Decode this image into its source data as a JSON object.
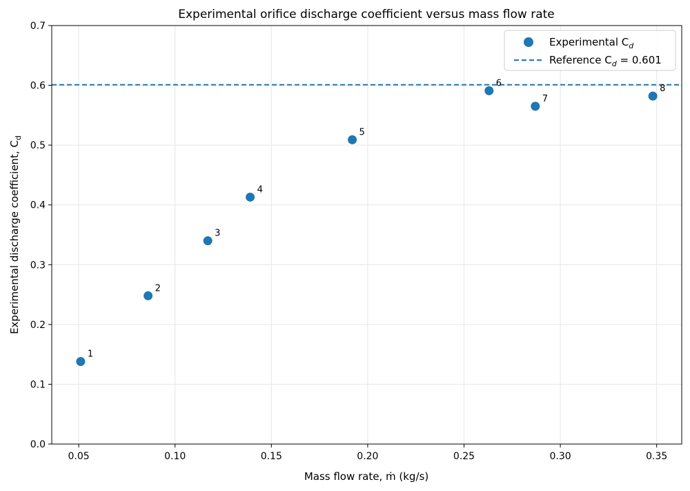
{
  "chart_data": {
    "type": "scatter",
    "title": "Experimental orifice discharge coefficient versus mass flow rate",
    "xlabel": "Mass flow rate, ṁ (kg/s)",
    "ylabel": "Experimental discharge coefficient, C",
    "ylabel_sub": "d",
    "xlim": [
      0.036,
      0.363
    ],
    "ylim": [
      0.0,
      0.7
    ],
    "x_ticks": [
      "0.05",
      "0.10",
      "0.15",
      "0.20",
      "0.25",
      "0.30",
      "0.35"
    ],
    "x_tick_values": [
      0.05,
      0.1,
      0.15,
      0.2,
      0.25,
      0.3,
      0.35
    ],
    "y_ticks": [
      "0.0",
      "0.1",
      "0.2",
      "0.3",
      "0.4",
      "0.5",
      "0.6",
      "0.7"
    ],
    "y_tick_values": [
      0.0,
      0.1,
      0.2,
      0.3,
      0.4,
      0.5,
      0.6,
      0.7
    ],
    "grid": true,
    "legend_position": "top-right",
    "series": [
      {
        "name": "Experimental C",
        "name_sub": "d",
        "color": "#1f77b4",
        "points": [
          {
            "label": "1",
            "x": 0.051,
            "y": 0.138
          },
          {
            "label": "2",
            "x": 0.086,
            "y": 0.248
          },
          {
            "label": "3",
            "x": 0.117,
            "y": 0.34
          },
          {
            "label": "4",
            "x": 0.139,
            "y": 0.413
          },
          {
            "label": "5",
            "x": 0.192,
            "y": 0.509
          },
          {
            "label": "6",
            "x": 0.263,
            "y": 0.591
          },
          {
            "label": "7",
            "x": 0.287,
            "y": 0.565
          },
          {
            "label": "8",
            "x": 0.348,
            "y": 0.582
          }
        ]
      }
    ],
    "reference_line": {
      "name_prefix": "Reference C",
      "name_sub": "d",
      "name_suffix": " = 0.601",
      "y": 0.601,
      "style": "dashed",
      "color": "#1f77b4"
    }
  }
}
